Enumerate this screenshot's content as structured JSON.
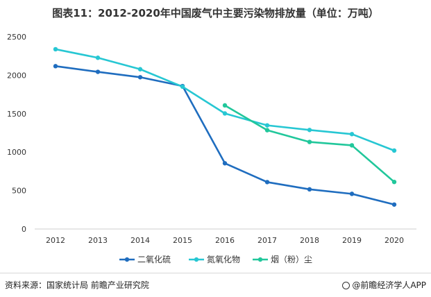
{
  "chart_data": {
    "type": "line",
    "title": "图表11：2012-2020年中国废气中主要污染物排放量（单位：万吨）",
    "xlabel": "",
    "ylabel": "",
    "categories": [
      "2012",
      "2013",
      "2014",
      "2015",
      "2016",
      "2017",
      "2018",
      "2019",
      "2020"
    ],
    "ylim": [
      0,
      2500
    ],
    "yticks": [
      0,
      500,
      1000,
      1500,
      2000,
      2500
    ],
    "grid": false,
    "legend": "bottom",
    "series": [
      {
        "name": "二氧化硫",
        "color": "#1f6dbf",
        "values": [
          2118,
          2044,
          1974,
          1859,
          855,
          610,
          516,
          457,
          318
        ]
      },
      {
        "name": "氮氧化物",
        "color": "#27c7d3",
        "values": [
          2338,
          2227,
          2078,
          1851,
          1503,
          1348,
          1288,
          1234,
          1020
        ]
      },
      {
        "name": "烟（粉）尘",
        "color": "#21c79b",
        "values": [
          null,
          null,
          null,
          null,
          1608,
          1285,
          1132,
          1088,
          612
        ]
      }
    ]
  },
  "footer": {
    "source": "资料来源：国家统计局 前瞻产业研究院",
    "brand": "@前瞻经济学人APP"
  }
}
